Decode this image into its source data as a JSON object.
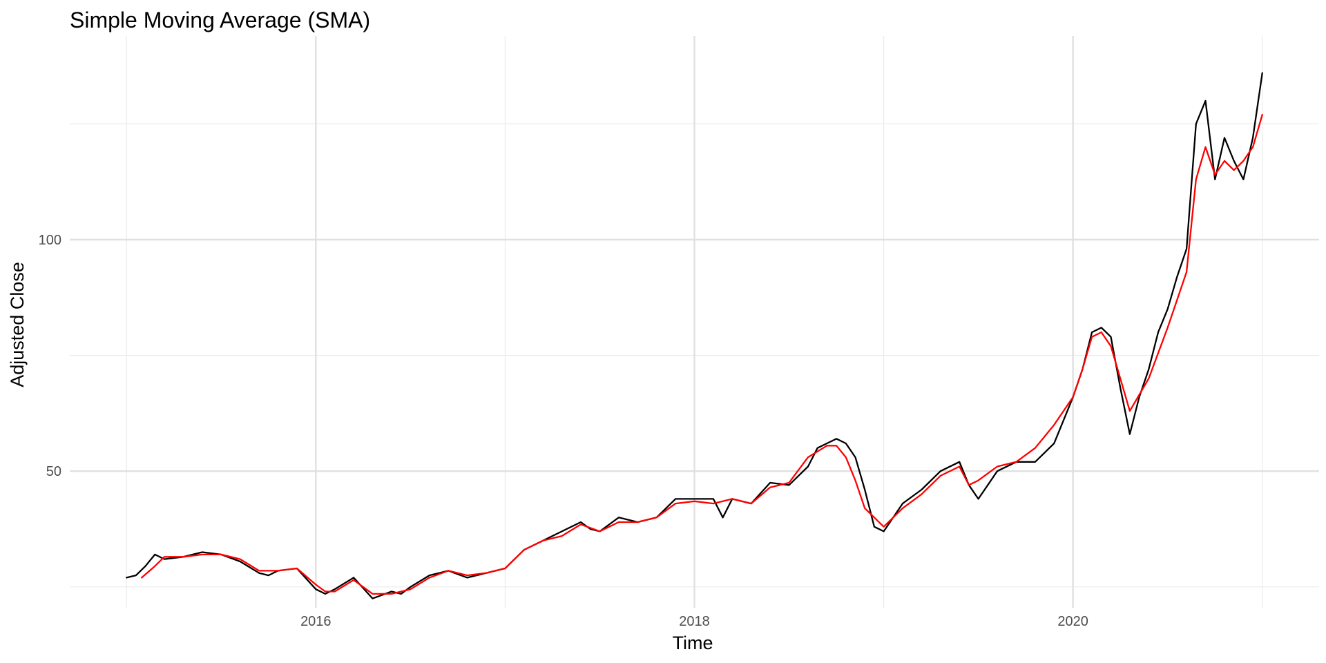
{
  "chart_data": {
    "type": "line",
    "title": "Simple Moving Average (SMA)",
    "xlabel": "Time",
    "ylabel": "Adjusted Close",
    "xlim": [
      2014.7,
      2021.3
    ],
    "ylim": [
      20.5,
      144
    ],
    "x_ticks": [
      2016,
      2018,
      2020
    ],
    "x_tick_labels": [
      "2016",
      "2018",
      "2020"
    ],
    "x_minor_ticks": [
      2015,
      2017,
      2019,
      2021
    ],
    "y_ticks": [
      50,
      100
    ],
    "y_tick_labels": [
      "50",
      "100"
    ],
    "y_minor_ticks": [
      25,
      75,
      125
    ],
    "grid": true,
    "legend": "none",
    "series": [
      {
        "color": "#000000",
        "x": [
          2015.0,
          2015.05,
          2015.1,
          2015.15,
          2015.2,
          2015.3,
          2015.4,
          2015.5,
          2015.6,
          2015.7,
          2015.75,
          2015.8,
          2015.9,
          2016.0,
          2016.05,
          2016.1,
          2016.2,
          2016.3,
          2016.4,
          2016.45,
          2016.5,
          2016.6,
          2016.7,
          2016.8,
          2016.9,
          2017.0,
          2017.1,
          2017.2,
          2017.3,
          2017.4,
          2017.45,
          2017.5,
          2017.6,
          2017.7,
          2017.8,
          2017.9,
          2018.0,
          2018.1,
          2018.15,
          2018.2,
          2018.3,
          2018.4,
          2018.5,
          2018.6,
          2018.65,
          2018.7,
          2018.75,
          2018.8,
          2018.85,
          2018.9,
          2018.95,
          2019.0,
          2019.1,
          2019.2,
          2019.3,
          2019.4,
          2019.45,
          2019.5,
          2019.6,
          2019.7,
          2019.8,
          2019.9,
          2020.0,
          2020.05,
          2020.1,
          2020.15,
          2020.2,
          2020.25,
          2020.3,
          2020.35,
          2020.4,
          2020.45,
          2020.5,
          2020.55,
          2020.6,
          2020.65,
          2020.7,
          2020.75,
          2020.8,
          2020.85,
          2020.9,
          2020.95,
          2021.0
        ],
        "y": [
          27,
          27.5,
          29.5,
          32,
          31,
          31.5,
          32.5,
          32,
          30.5,
          28,
          27.5,
          28.5,
          29,
          24.5,
          23.5,
          24.5,
          27,
          22.5,
          24,
          23.5,
          25,
          27.5,
          28.5,
          27,
          28,
          29,
          33,
          35,
          37,
          39,
          37.5,
          37,
          40,
          39,
          40,
          44,
          44,
          44,
          40,
          44,
          43,
          47.5,
          47,
          51,
          55,
          56,
          57,
          56,
          53,
          46,
          38,
          37,
          43,
          46,
          50,
          52,
          47,
          44,
          50,
          52,
          52,
          56,
          66,
          72,
          80,
          81,
          79,
          68,
          58,
          66,
          72,
          80,
          85,
          92,
          98,
          125,
          130,
          113,
          122,
          117,
          113,
          122,
          136
        ]
      },
      {
        "color": "#ff0000",
        "x": [
          2015.08,
          2015.15,
          2015.2,
          2015.3,
          2015.4,
          2015.5,
          2015.6,
          2015.7,
          2015.8,
          2015.9,
          2016.0,
          2016.05,
          2016.1,
          2016.2,
          2016.3,
          2016.4,
          2016.5,
          2016.6,
          2016.7,
          2016.8,
          2016.9,
          2017.0,
          2017.1,
          2017.2,
          2017.3,
          2017.4,
          2017.5,
          2017.6,
          2017.7,
          2017.8,
          2017.9,
          2018.0,
          2018.1,
          2018.2,
          2018.3,
          2018.4,
          2018.5,
          2018.6,
          2018.7,
          2018.75,
          2018.8,
          2018.85,
          2018.9,
          2019.0,
          2019.1,
          2019.2,
          2019.3,
          2019.4,
          2019.45,
          2019.5,
          2019.6,
          2019.7,
          2019.8,
          2019.9,
          2020.0,
          2020.05,
          2020.1,
          2020.15,
          2020.2,
          2020.3,
          2020.4,
          2020.5,
          2020.6,
          2020.65,
          2020.7,
          2020.75,
          2020.8,
          2020.85,
          2020.9,
          2020.95,
          2021.0
        ],
        "y": [
          27,
          29.5,
          31.5,
          31.5,
          32,
          32,
          31,
          28.5,
          28.5,
          29,
          25.5,
          24,
          24,
          26.5,
          23.5,
          23.5,
          24.5,
          27,
          28.5,
          27.5,
          28,
          29,
          33,
          35,
          36,
          38.5,
          37,
          39,
          39,
          40,
          43,
          43.5,
          43,
          44,
          43,
          46.5,
          47.5,
          53,
          55.5,
          55.5,
          53,
          48,
          42,
          38,
          42,
          45,
          49,
          51,
          47,
          48,
          51,
          52,
          55,
          60,
          66,
          72,
          79,
          80,
          77,
          63,
          70,
          81,
          93,
          113,
          120,
          114,
          117,
          115,
          117,
          120,
          127
        ]
      }
    ]
  }
}
